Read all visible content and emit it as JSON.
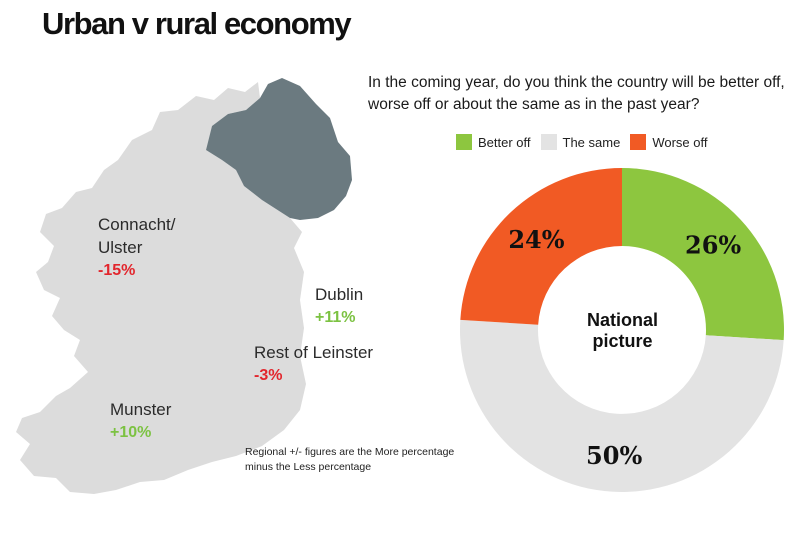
{
  "title": "Urban v rural economy",
  "question": "In the coming year, do you think the country will be better off, worse off or about the same as in the past year?",
  "legend": [
    {
      "label": "Better off",
      "color": "#8dc63f"
    },
    {
      "label": "The same",
      "color": "#e3e3e3"
    },
    {
      "label": "Worse off",
      "color": "#f15a24"
    }
  ],
  "regions": {
    "connacht_ulster": {
      "name": "Connacht/\nUlster",
      "value": "-15%"
    },
    "dublin": {
      "name": "Dublin",
      "value": "+11%"
    },
    "rest_of_leinster": {
      "name": "Rest of Leinster",
      "value": "-3%"
    },
    "munster": {
      "name": "Munster",
      "value": "+10%"
    }
  },
  "note": "Regional +/- figures are the More percentage minus the Less percentage",
  "colors": {
    "map_republic": "#dcdcdc",
    "map_northern_ireland": "#6b7a80",
    "negative": "#e2262d",
    "positive": "#7cc242"
  },
  "chart_data": {
    "type": "pie",
    "donut": true,
    "center_label": "National picture",
    "slices": [
      {
        "label": "Better off",
        "value": 26,
        "display": "26%",
        "color": "#8dc63f"
      },
      {
        "label": "The same",
        "value": 50,
        "display": "50%",
        "color": "#e3e3e3"
      },
      {
        "label": "Worse off",
        "value": 24,
        "display": "24%",
        "color": "#f15a24"
      }
    ],
    "legend_position": "top"
  }
}
